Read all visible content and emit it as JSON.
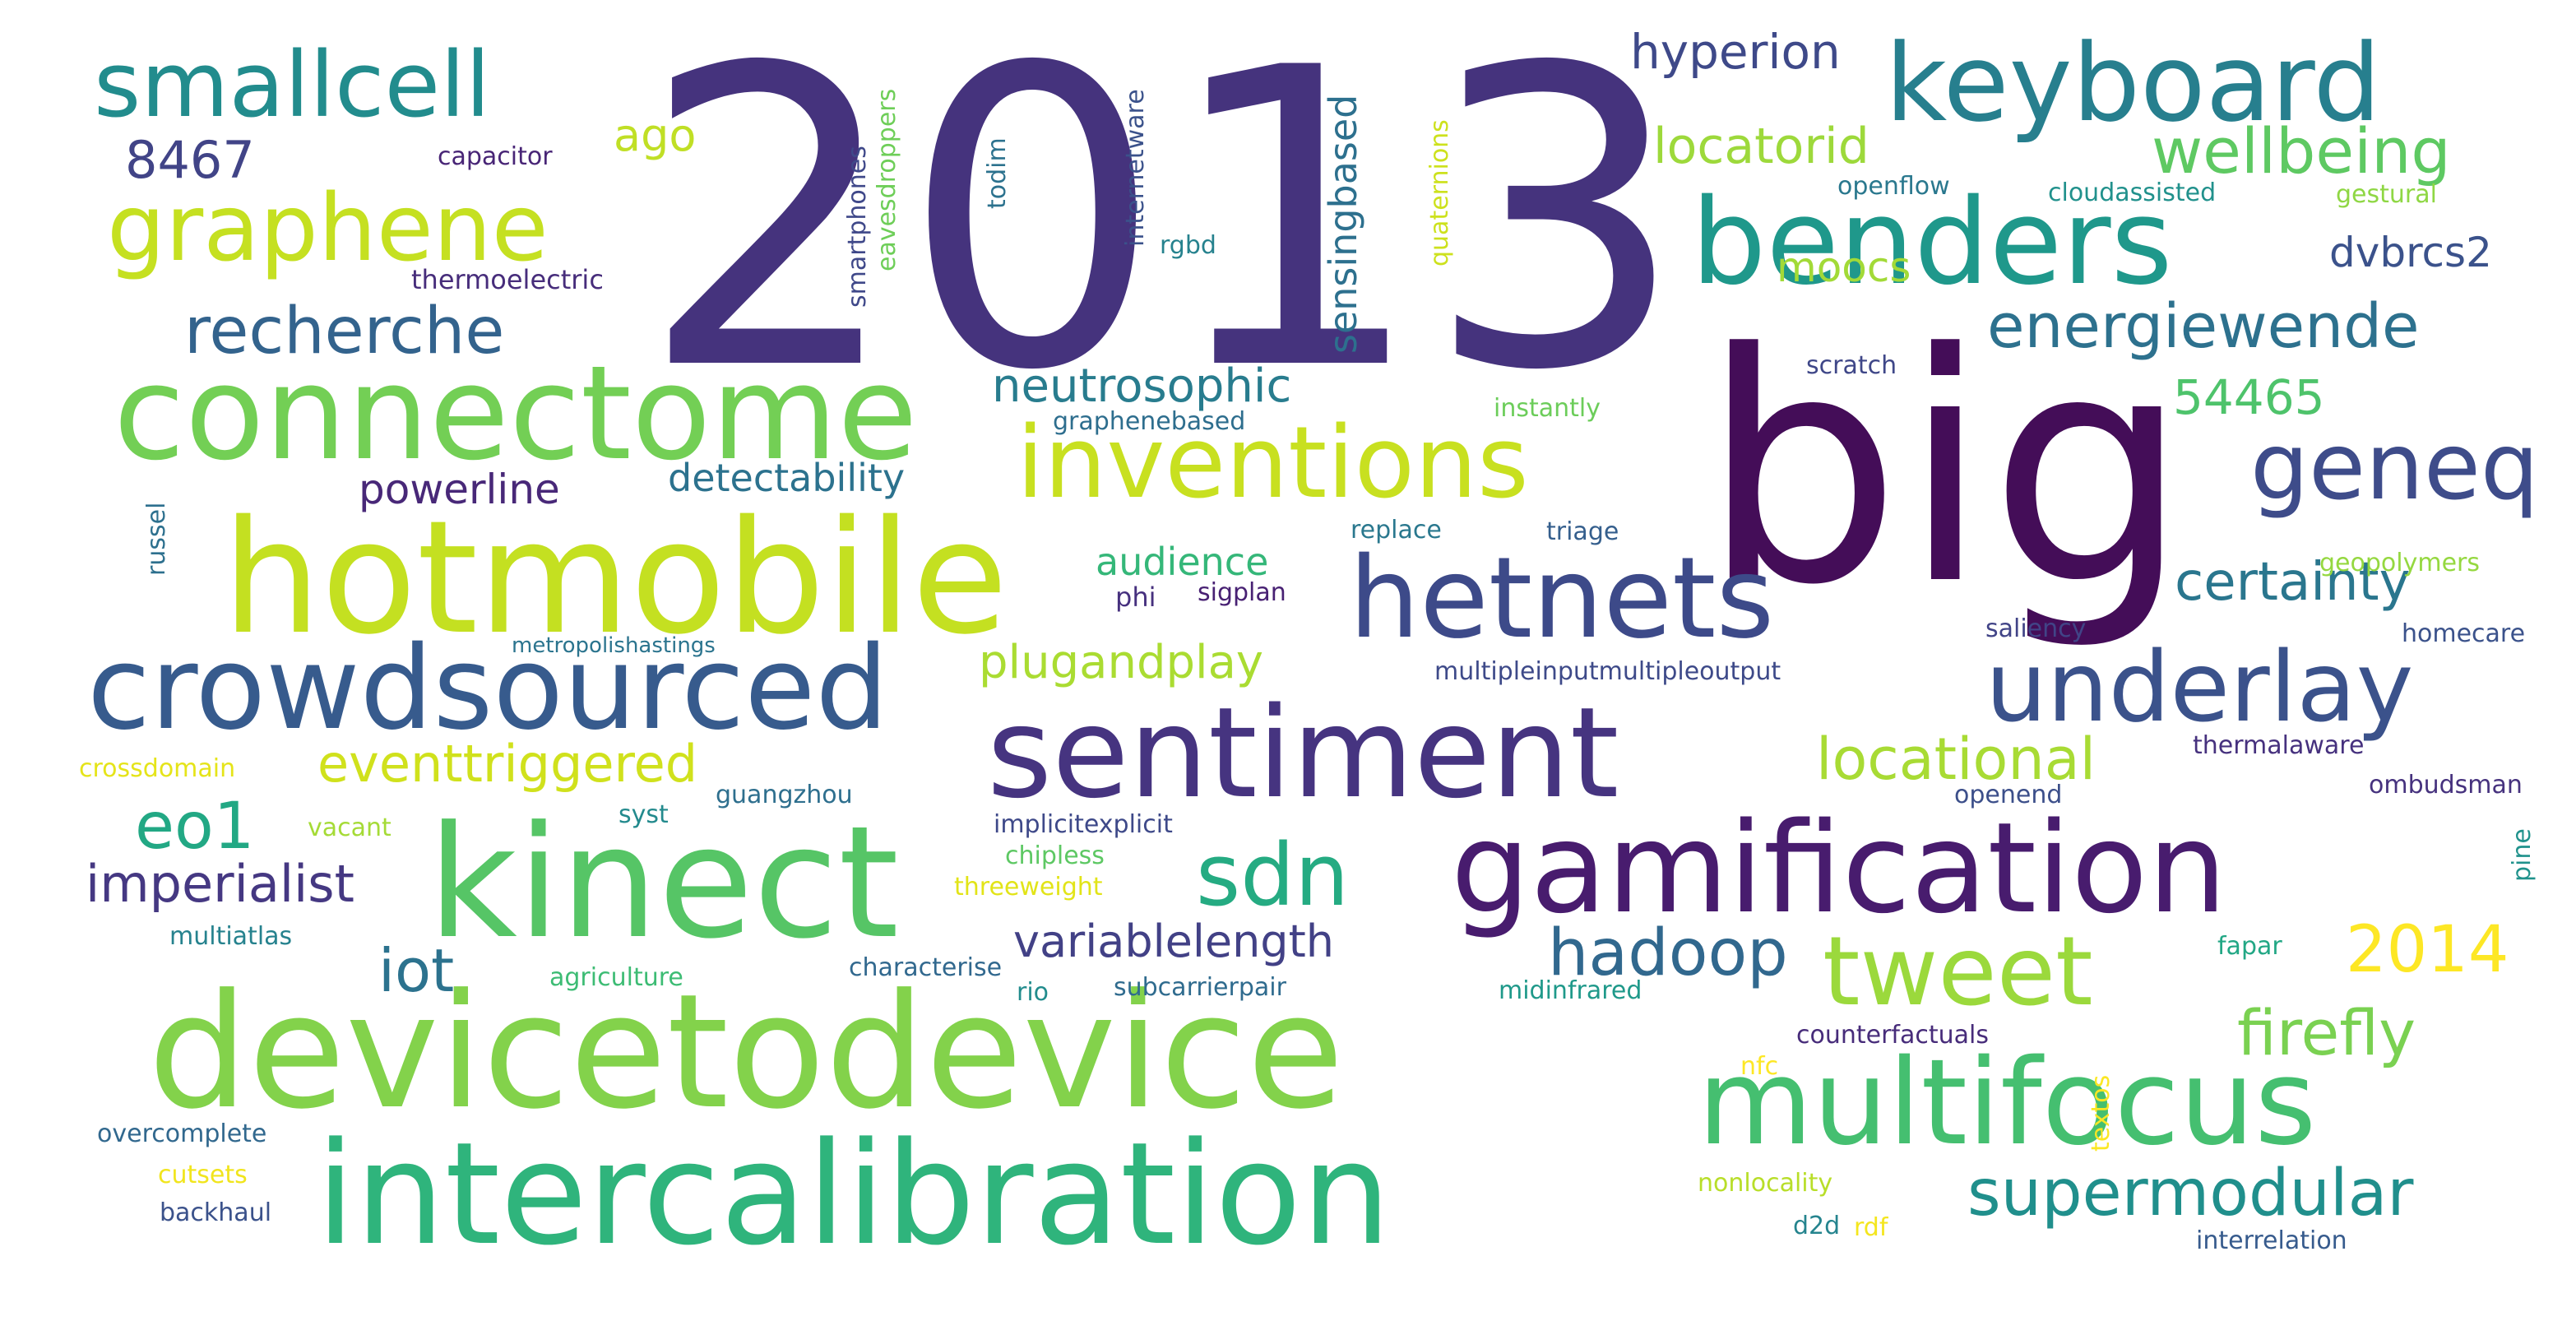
{
  "words": [
    {
      "text": "2013",
      "color": "#45337d"
    },
    {
      "text": "big",
      "color": "#440d58"
    },
    {
      "text": "devicetodevice",
      "color": "#83d24b"
    },
    {
      "text": "intercalibration",
      "color": "#2fb47c"
    },
    {
      "text": "kinect",
      "color": "#56c566"
    },
    {
      "text": "hotmobile",
      "color": "#c4e021"
    },
    {
      "text": "connectome",
      "color": "#73cf55"
    },
    {
      "text": "crowdsourced",
      "color": "#375b8d"
    },
    {
      "text": "sentiment",
      "color": "#463480"
    },
    {
      "text": "gamification",
      "color": "#481c6e"
    },
    {
      "text": "multifocus",
      "color": "#45bf70"
    },
    {
      "text": "benders",
      "color": "#1f988b"
    },
    {
      "text": "keyboard",
      "color": "#277f8e"
    },
    {
      "text": "hetnets",
      "color": "#3d4a89"
    },
    {
      "text": "inventions",
      "color": "#c8e020"
    },
    {
      "text": "graphene",
      "color": "#c5e021"
    },
    {
      "text": "smallcell",
      "color": "#228c8d"
    },
    {
      "text": "underlay",
      "color": "#3b528b"
    },
    {
      "text": "tweet",
      "color": "#9bd93c"
    },
    {
      "text": "geneq",
      "color": "#3e4c8a"
    },
    {
      "text": "sdn",
      "color": "#25ab82"
    },
    {
      "text": "hadoop",
      "color": "#31688e"
    },
    {
      "text": "supermodular",
      "color": "#208f8c"
    },
    {
      "text": "firefly",
      "color": "#7ad151"
    },
    {
      "text": "energiewende",
      "color": "#2d718e"
    },
    {
      "text": "recherche",
      "color": "#33638d"
    },
    {
      "text": "wellbeing",
      "color": "#5ec962"
    },
    {
      "text": "locational",
      "color": "#a8db34"
    },
    {
      "text": "2014",
      "color": "#fde725"
    },
    {
      "text": "certainty",
      "color": "#2a768e"
    },
    {
      "text": "eo1",
      "color": "#22a884"
    },
    {
      "text": "iot",
      "color": "#2c728e"
    },
    {
      "text": "imperialist",
      "color": "#453882"
    },
    {
      "text": "eventtriggered",
      "color": "#d0e11c"
    },
    {
      "text": "variablelength",
      "color": "#424186"
    },
    {
      "text": "neutrosophic",
      "color": "#287c8e"
    },
    {
      "text": "plugandplay",
      "color": "#aadc32"
    },
    {
      "text": "locatorid",
      "color": "#9dd93b"
    },
    {
      "text": "hyperion",
      "color": "#3e4989"
    },
    {
      "text": "dvbrcs2",
      "color": "#3b528b"
    },
    {
      "text": "54465",
      "color": "#4ec36b"
    },
    {
      "text": "powerline",
      "color": "#482878"
    },
    {
      "text": "detectability",
      "color": "#2c728e"
    },
    {
      "text": "moocs",
      "color": "#a2da37"
    },
    {
      "text": "audience",
      "color": "#35b779"
    },
    {
      "text": "8467",
      "color": "#414487"
    },
    {
      "text": "ago",
      "color": "#c0df25"
    },
    {
      "text": "sensingbased",
      "color": "#2d708e"
    },
    {
      "text": "capacitor",
      "color": "#482576"
    },
    {
      "text": "thermoelectric",
      "color": "#472d7b"
    },
    {
      "text": "phi",
      "color": "#46307e"
    },
    {
      "text": "sigplan",
      "color": "#482173"
    },
    {
      "text": "replace",
      "color": "#2a788e"
    },
    {
      "text": "triage",
      "color": "#355f8d"
    },
    {
      "text": "instantly",
      "color": "#6ccd5a"
    },
    {
      "text": "graphenebased",
      "color": "#2e6e8e"
    },
    {
      "text": "scratch",
      "color": "#3f4788"
    },
    {
      "text": "openflow",
      "color": "#2a788e"
    },
    {
      "text": "cloudassisted",
      "color": "#21918c"
    },
    {
      "text": "gestural",
      "color": "#8fd744"
    },
    {
      "text": "rgbd",
      "color": "#26828e"
    },
    {
      "text": "geopolymers",
      "color": "#95d840"
    },
    {
      "text": "homecare",
      "color": "#3b528b"
    },
    {
      "text": "saliency",
      "color": "#414487"
    },
    {
      "text": "multipleinputmultipleoutput",
      "color": "#3e4a89"
    },
    {
      "text": "metropolishastings",
      "color": "#2b748e"
    },
    {
      "text": "crossdomain",
      "color": "#e5e419"
    },
    {
      "text": "thermalaware",
      "color": "#46317e"
    },
    {
      "text": "ombudsman",
      "color": "#46327e"
    },
    {
      "text": "openend",
      "color": "#3c4f8a"
    },
    {
      "text": "vacant",
      "color": "#a5db36"
    },
    {
      "text": "syst",
      "color": "#238a8d"
    },
    {
      "text": "guangzhou",
      "color": "#2e6f8e"
    },
    {
      "text": "implicitexplicit",
      "color": "#3e4989"
    },
    {
      "text": "chipless",
      "color": "#5dc863"
    },
    {
      "text": "threeweight",
      "color": "#e2e418"
    },
    {
      "text": "multiatlas",
      "color": "#26828e"
    },
    {
      "text": "agriculture",
      "color": "#3dbc74"
    },
    {
      "text": "characterise",
      "color": "#31688e"
    },
    {
      "text": "rio",
      "color": "#228c8d"
    },
    {
      "text": "subcarrierpair",
      "color": "#2f6b8e"
    },
    {
      "text": "fapar",
      "color": "#22a785"
    },
    {
      "text": "midinfrared",
      "color": "#1f998a"
    },
    {
      "text": "counterfactuals",
      "color": "#472c7a"
    },
    {
      "text": "nfc",
      "color": "#fde725"
    },
    {
      "text": "overcomplete",
      "color": "#31688e"
    },
    {
      "text": "cutsets",
      "color": "#f1e51d"
    },
    {
      "text": "backhaul",
      "color": "#3b528b"
    },
    {
      "text": "nonlocality",
      "color": "#b8de29"
    },
    {
      "text": "d2d",
      "color": "#25848e"
    },
    {
      "text": "rdf",
      "color": "#f4e61e"
    },
    {
      "text": "interrelation",
      "color": "#375b8d"
    },
    {
      "text": "russel",
      "color": "#2d708e"
    },
    {
      "text": "smartphones",
      "color": "#3f4889"
    },
    {
      "text": "eavesdroppers",
      "color": "#6ece58"
    },
    {
      "text": "todim",
      "color": "#2c728e"
    },
    {
      "text": "internetware",
      "color": "#3b528b"
    },
    {
      "text": "quaternions",
      "color": "#cde11d"
    },
    {
      "text": "textos",
      "color": "#fbe723"
    },
    {
      "text": "pine",
      "color": "#20928c"
    }
  ]
}
